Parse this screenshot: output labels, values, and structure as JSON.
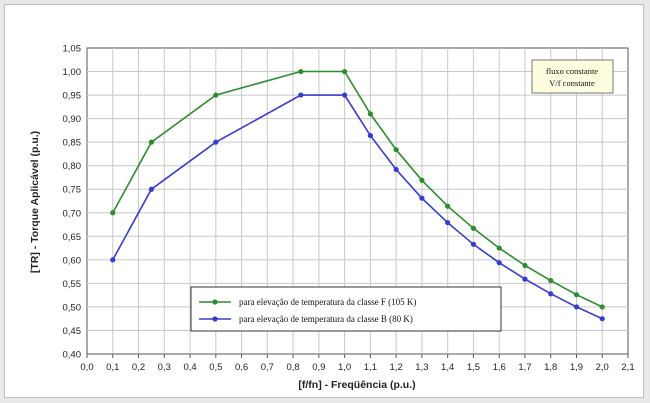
{
  "chart_data": {
    "type": "line",
    "xlabel": "[f/fn] - Freqüência (p.u.)",
    "ylabel": "[TR] - Torque Aplicável (p.u.)",
    "xlim": [
      0.0,
      2.1
    ],
    "ylim": [
      0.4,
      1.05
    ],
    "x_ticks": [
      "0,0",
      "0,1",
      "0,2",
      "0,3",
      "0,4",
      "0,5",
      "0,6",
      "0,7",
      "0,8",
      "0,9",
      "1,0",
      "1,1",
      "1,2",
      "1,3",
      "1,4",
      "1,5",
      "1,6",
      "1,7",
      "1,8",
      "1,9",
      "2,0",
      "2,1"
    ],
    "y_ticks": [
      "0,40",
      "0,45",
      "0,50",
      "0,55",
      "0,60",
      "0,65",
      "0,70",
      "0,75",
      "0,80",
      "0,85",
      "0,90",
      "0,95",
      "1,00",
      "1,05"
    ],
    "grid": true,
    "legend_position": "bottom-center",
    "note": [
      "fluxo constante",
      "V/f constante"
    ],
    "series": [
      {
        "name": "para elevação de temperatura da classe F (105 K)",
        "color": "#2e8b2e",
        "x": [
          0.1,
          0.25,
          0.5,
          0.83,
          1.0,
          1.1,
          1.2,
          1.3,
          1.4,
          1.5,
          1.6,
          1.7,
          1.8,
          1.9,
          2.0
        ],
        "y": [
          0.7,
          0.85,
          0.95,
          1.0,
          1.0,
          0.91,
          0.834,
          0.769,
          0.714,
          0.667,
          0.625,
          0.588,
          0.556,
          0.526,
          0.5
        ]
      },
      {
        "name": "para elevação de temperatura da classe B (80 K)",
        "color": "#3a3ad0",
        "x": [
          0.1,
          0.25,
          0.5,
          0.83,
          1.0,
          1.1,
          1.2,
          1.3,
          1.4,
          1.5,
          1.6,
          1.7,
          1.8,
          1.9,
          2.0
        ],
        "y": [
          0.6,
          0.75,
          0.85,
          0.95,
          0.95,
          0.864,
          0.792,
          0.731,
          0.679,
          0.633,
          0.594,
          0.559,
          0.528,
          0.5,
          0.475
        ]
      }
    ]
  }
}
